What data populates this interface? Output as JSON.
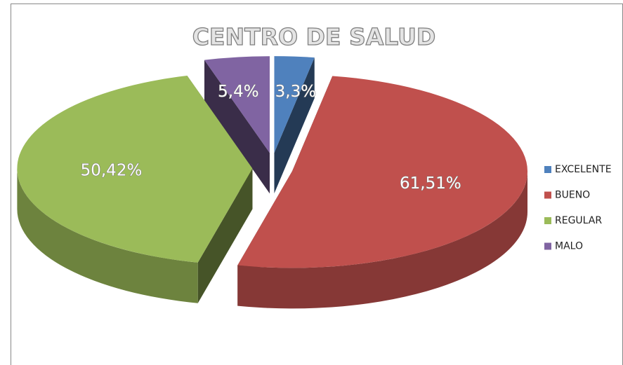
{
  "chart_data": {
    "type": "pie",
    "title": "CENTRO DE SALUD",
    "categories": [
      "EXCELENTE",
      "BUENO",
      "REGULAR",
      "MALO"
    ],
    "values": [
      3.3,
      61.51,
      50.42,
      5.4
    ],
    "value_labels": [
      "3,3%",
      "61,51%",
      "50,42%",
      "5,4%"
    ],
    "colors": [
      "#4f81bd",
      "#c0504d",
      "#9bbb59",
      "#8064a2"
    ],
    "legend": "right"
  }
}
